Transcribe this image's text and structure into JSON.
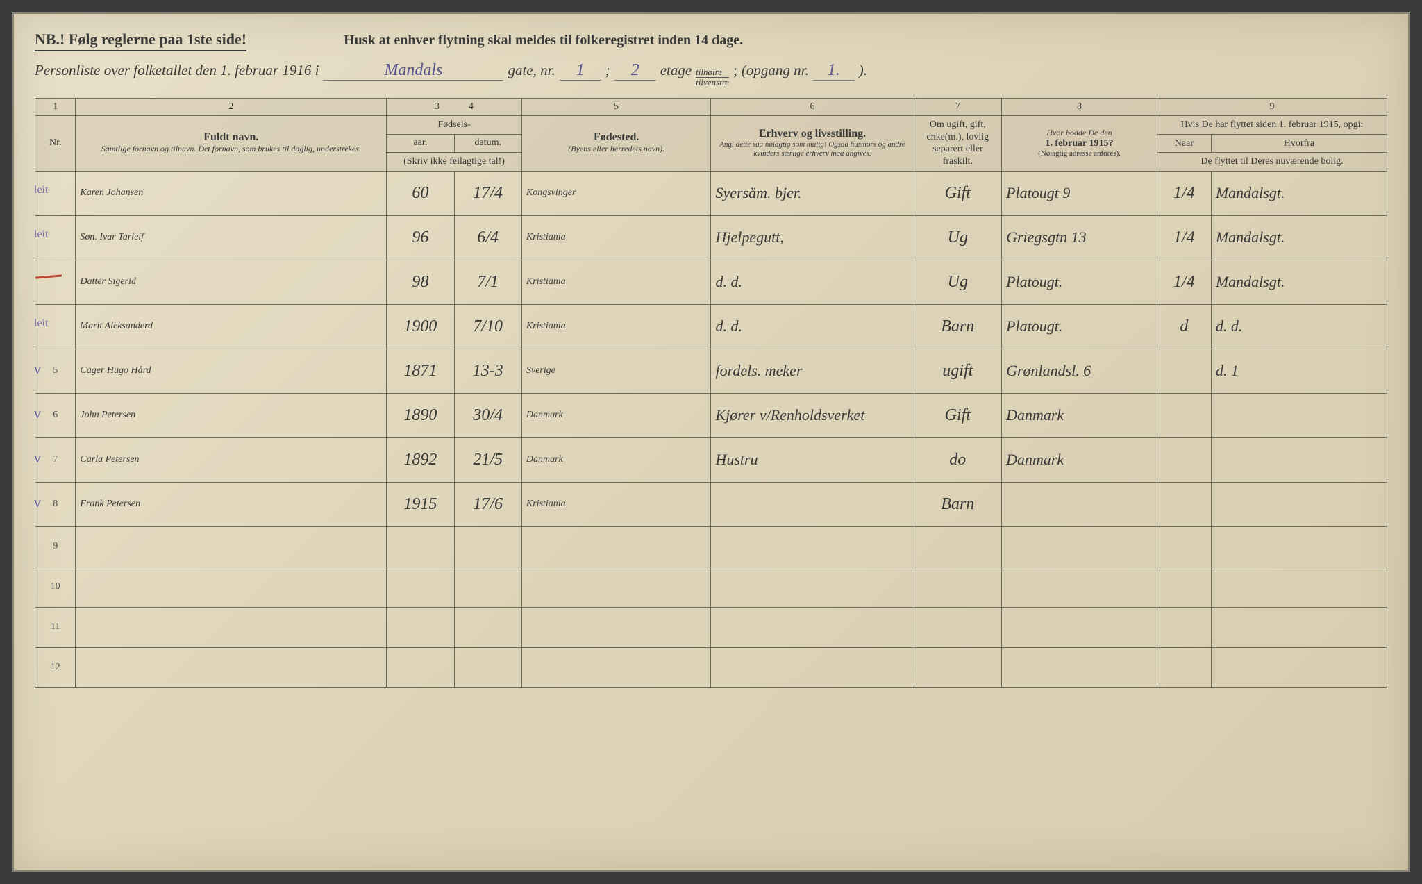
{
  "header": {
    "nb": "NB.! Følg reglerne paa 1ste side!",
    "husk": "Husk at enhver flytning skal meldes til folkeregistret inden 14 dage.",
    "personliste_pre": "Personliste over folketallet den 1. februar 1916 i",
    "street": "Mandals",
    "gate_nr_label": "gate, nr.",
    "gate_nr": "1",
    "semicolon": ";",
    "etage_nr": "2",
    "etage_label": "etage",
    "frac_top": "tilhøire",
    "frac_bot": "tilvenstre",
    "opgang_label": "(opgang nr.",
    "opgang_nr": "1.",
    "close": ")."
  },
  "colnums": [
    "1",
    "2",
    "3",
    "4",
    "5",
    "6",
    "7",
    "8",
    "9"
  ],
  "headers": {
    "nr": "Nr.",
    "fuldt": "Fuldt navn.",
    "fuldt_sub": "Samtlige fornavn og tilnavn. Det fornavn, som brukes til daglig, understrekes.",
    "fodsels": "Fødsels-",
    "aar": "aar.",
    "datum": "datum.",
    "aar_sub": "(Skriv ikke feilagtige tal!)",
    "fodested": "Fødested.",
    "fodested_sub": "(Byens eller herredets navn).",
    "erhverv": "Erhverv og livsstilling.",
    "erhverv_sub": "Angi dette saa nøiagtig som mulig! Ogsaa husmors og andre kvinders særlige erhverv maa angives.",
    "ugift": "Om ugift, gift, enke(m.), lovlig separert eller fraskilt.",
    "hvor1915": "Hvor bodde De den",
    "hvor1915b": "1. februar 1915?",
    "hvor1915_sub": "(Nøiagtig adresse anføres).",
    "flyttet": "Hvis De har flyttet siden 1. februar 1915, opgi:",
    "naar": "Naar",
    "hvorfra": "Hvorfra",
    "flyttet_sub": "De flyttet til Deres nuværende bolig."
  },
  "rows": [
    {
      "n": "",
      "mark": "leit",
      "name": "Karen Johansen",
      "yr": "60",
      "dt": "17/4",
      "birthplace": "Kongsvinger",
      "occ": "Syersäm. bjer.",
      "stat": "Gift",
      "addr1915": "Platougt 9",
      "naar": "1/4",
      "hvorfra": "Mandalsgt."
    },
    {
      "n": "",
      "mark": "leit",
      "name": "Søn. Ivar Tarleif",
      "yr": "96",
      "dt": "6/4",
      "birthplace": "Kristiania",
      "occ": "Hjelpegutt,",
      "stat": "Ug",
      "addr1915": "Griegsgtn 13",
      "naar": "1/4",
      "hvorfra": "Mandalsgt."
    },
    {
      "n": "",
      "mark": "red",
      "name": "Datter Sigerid",
      "yr": "98",
      "dt": "7/1",
      "birthplace": "Kristiania",
      "occ": "d. d.",
      "stat": "Ug",
      "addr1915": "Platougt.",
      "naar": "1/4",
      "hvorfra": "Mandalsgt."
    },
    {
      "n": "",
      "mark": "leit",
      "name": "Marit Aleksanderd",
      "yr": "1900",
      "dt": "7/10",
      "birthplace": "Kristiania",
      "occ": "d. d.",
      "stat": "Barn",
      "addr1915": "Platougt.",
      "naar": "d",
      "hvorfra": "d. d."
    },
    {
      "n": "5",
      "mark": "v",
      "name": "Cager Hugo Hård",
      "yr": "1871",
      "dt": "13-3",
      "birthplace": "Sverige",
      "occ": "fordels. meker",
      "stat": "ugift",
      "addr1915": "Grønlandsl. 6",
      "naar": "",
      "hvorfra": "d.   1"
    },
    {
      "n": "6",
      "mark": "v",
      "name": "John Petersen",
      "yr": "1890",
      "dt": "30/4",
      "birthplace": "Danmark",
      "occ": "Kjører v/Renholdsverket",
      "stat": "Gift",
      "addr1915": "Danmark",
      "naar": "",
      "hvorfra": ""
    },
    {
      "n": "7",
      "mark": "v",
      "name": "Carla Petersen",
      "yr": "1892",
      "dt": "21/5",
      "birthplace": "Danmark",
      "occ": "Hustru",
      "stat": "do",
      "addr1915": "Danmark",
      "naar": "",
      "hvorfra": ""
    },
    {
      "n": "8",
      "mark": "v",
      "name": "Frank Petersen",
      "yr": "1915",
      "dt": "17/6",
      "birthplace": "Kristiania",
      "occ": "",
      "stat": "Barn",
      "addr1915": "",
      "naar": "",
      "hvorfra": ""
    }
  ],
  "empty_rows": [
    "9",
    "10",
    "11",
    "12"
  ],
  "colors": {
    "paper": "#e0d7bd",
    "ink_print": "#3a3a38",
    "ink_hand": "#3a3a42",
    "ink_purple": "#5a5590",
    "ink_red": "#b84a3a",
    "rule": "#6a6a5a"
  }
}
